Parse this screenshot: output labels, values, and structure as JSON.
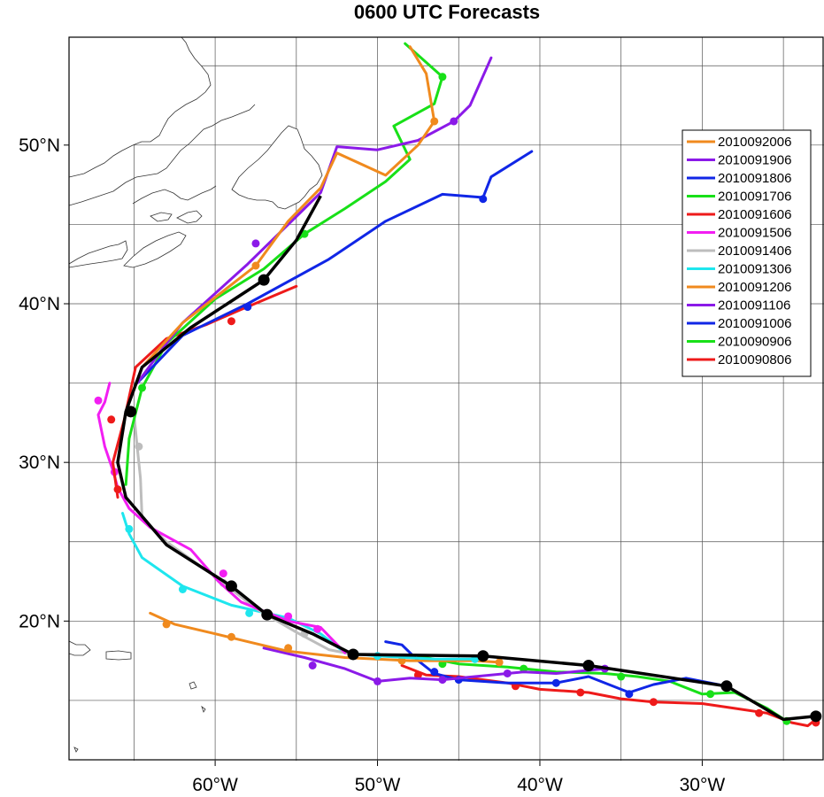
{
  "title": "0600 UTC Forecasts",
  "map": {
    "lon_range": [
      -69,
      -22.5
    ],
    "lat_range": [
      11.2,
      56.8
    ],
    "grid_lons": [
      -65,
      -60,
      -55,
      -50,
      -45,
      -40,
      -35,
      -30,
      -25
    ],
    "grid_lats": [
      15,
      20,
      25,
      30,
      35,
      40,
      45,
      50,
      55
    ],
    "lon_labels": [
      {
        "lon": -60,
        "text": "60°W"
      },
      {
        "lon": -50,
        "text": "50°W"
      },
      {
        "lon": -40,
        "text": "40°W"
      },
      {
        "lon": -30,
        "text": "30°W"
      }
    ],
    "lat_labels": [
      {
        "lat": 20,
        "text": "20°N"
      },
      {
        "lat": 30,
        "text": "30°N"
      },
      {
        "lat": 40,
        "text": "40°N"
      },
      {
        "lat": 50,
        "text": "50°N"
      }
    ]
  },
  "chart_data": {
    "type": "map-tracks",
    "legend": [
      {
        "label": "2010092006",
        "color": "#f08a1e"
      },
      {
        "label": "2010091906",
        "color": "#8b1ae8"
      },
      {
        "label": "2010091806",
        "color": "#1026e6"
      },
      {
        "label": "2010091706",
        "color": "#18e018"
      },
      {
        "label": "2010091606",
        "color": "#ee1a1a"
      },
      {
        "label": "2010091506",
        "color": "#f21ef2"
      },
      {
        "label": "2010091406",
        "color": "#bdbdbd"
      },
      {
        "label": "2010091306",
        "color": "#1ee6ee"
      },
      {
        "label": "2010091206",
        "color": "#f08a1e"
      },
      {
        "label": "2010091106",
        "color": "#8b1ae8"
      },
      {
        "label": "2010091006",
        "color": "#1026e6"
      },
      {
        "label": "2010090906",
        "color": "#18e018"
      },
      {
        "label": "2010090806",
        "color": "#ee1a1a"
      }
    ],
    "best_track": {
      "color": "#000000",
      "points": [
        [
          -23,
          14
        ],
        [
          -25,
          13.8
        ],
        [
          -28.5,
          15.9
        ],
        [
          -37,
          17.2
        ],
        [
          -43.5,
          17.8
        ],
        [
          -51.5,
          17.9
        ],
        [
          -54,
          19.2
        ],
        [
          -56.8,
          20.4
        ],
        [
          -59,
          22.2
        ],
        [
          -63,
          24.8
        ],
        [
          -65.5,
          27.8
        ],
        [
          -66,
          30
        ],
        [
          -65.5,
          33.2
        ],
        [
          -64.5,
          36
        ],
        [
          -61.5,
          38.5
        ],
        [
          -57,
          41.5
        ],
        [
          -55,
          44
        ],
        [
          -53.5,
          46.8
        ]
      ],
      "markers": [
        [
          -23,
          14
        ],
        [
          -28.5,
          15.9
        ],
        [
          -37,
          17.2
        ],
        [
          -43.5,
          17.8
        ],
        [
          -51.5,
          17.9
        ],
        [
          -56.8,
          20.4
        ],
        [
          -59,
          22.2
        ],
        [
          -65.2,
          33.2
        ],
        [
          -57,
          41.5
        ]
      ]
    },
    "tracks": [
      {
        "label": "2010092006",
        "color": "#f08a1e",
        "points": [
          [
            -64.5,
            36
          ],
          [
            -62,
            38.8
          ],
          [
            -57.5,
            42.4
          ],
          [
            -55.5,
            45.2
          ],
          [
            -53.5,
            47.3
          ],
          [
            -52.5,
            49.5
          ],
          [
            -49.5,
            48.1
          ],
          [
            -47.5,
            50
          ],
          [
            -46.5,
            51.5
          ],
          [
            -47,
            54.5
          ],
          [
            -48,
            56.2
          ]
        ],
        "markers": [
          [
            -57.5,
            42.4
          ],
          [
            -46.5,
            51.5
          ]
        ]
      },
      {
        "label": "2010091906",
        "color": "#8b1ae8",
        "points": [
          [
            -64.8,
            35
          ],
          [
            -63,
            37.5
          ],
          [
            -62,
            38.8
          ],
          [
            -58,
            42.5
          ],
          [
            -55,
            45.5
          ],
          [
            -53.5,
            47
          ],
          [
            -52.5,
            49.9
          ],
          [
            -50,
            49.7
          ],
          [
            -47.5,
            50.3
          ],
          [
            -45.3,
            51.5
          ],
          [
            -44.3,
            52.5
          ],
          [
            -43,
            55.5
          ]
        ],
        "markers": [
          [
            -57.5,
            43.8
          ],
          [
            -45.3,
            51.5
          ]
        ]
      },
      {
        "label": "2010091806",
        "color": "#1026e6",
        "points": [
          [
            -64.8,
            35
          ],
          [
            -62,
            38
          ],
          [
            -58,
            40
          ],
          [
            -53,
            42.8
          ],
          [
            -49.5,
            45.2
          ],
          [
            -46,
            46.9
          ],
          [
            -43.5,
            46.7
          ],
          [
            -43,
            48
          ],
          [
            -40.5,
            49.6
          ]
        ],
        "markers": [
          [
            -58,
            39.8
          ],
          [
            -43.5,
            46.6
          ]
        ]
      },
      {
        "label": "2010091706",
        "color": "#18e018",
        "points": [
          [
            -65.5,
            28.6
          ],
          [
            -65.3,
            31.5
          ],
          [
            -64.5,
            34.7
          ],
          [
            -63,
            37.5
          ],
          [
            -60,
            40.3
          ],
          [
            -57,
            42.2
          ],
          [
            -54.5,
            44.4
          ],
          [
            -52,
            46
          ],
          [
            -49.5,
            47.7
          ],
          [
            -48,
            49.1
          ],
          [
            -49,
            51.2
          ],
          [
            -46.5,
            52.6
          ],
          [
            -46,
            54.3
          ],
          [
            -48.3,
            56.4
          ]
        ],
        "markers": [
          [
            -64.5,
            34.7
          ],
          [
            -54.5,
            44.4
          ],
          [
            -46,
            54.3
          ]
        ]
      },
      {
        "label": "2010091606",
        "color": "#ee1a1a",
        "points": [
          [
            -66,
            27.8
          ],
          [
            -66.3,
            30
          ],
          [
            -65.6,
            32.7
          ],
          [
            -64.9,
            36
          ],
          [
            -63,
            37.8
          ],
          [
            -60.5,
            38.7
          ],
          [
            -58.5,
            39.6
          ],
          [
            -55,
            41.1
          ]
        ],
        "markers": [
          [
            -66,
            28.3
          ],
          [
            -66.4,
            32.7
          ],
          [
            -59,
            38.9
          ]
        ]
      },
      {
        "label": "2010091506",
        "color": "#f21ef2",
        "points": [
          [
            -66.5,
            35
          ],
          [
            -66.8,
            33.8
          ],
          [
            -67.2,
            33
          ],
          [
            -66.8,
            31
          ],
          [
            -66.3,
            29.5
          ],
          [
            -66,
            28.4
          ],
          [
            -65.3,
            27.1
          ],
          [
            -64,
            25.9
          ],
          [
            -61.5,
            24.5
          ],
          [
            -59.8,
            22.5
          ],
          [
            -58.4,
            21.2
          ],
          [
            -55.5,
            20
          ],
          [
            -53.5,
            19.6
          ],
          [
            -52,
            18
          ]
        ],
        "markers": [
          [
            -67.2,
            33.9
          ],
          [
            -66.2,
            29.4
          ],
          [
            -59.5,
            23
          ],
          [
            -55.5,
            20.3
          ],
          [
            -53.7,
            19.5
          ]
        ]
      },
      {
        "label": "2010091406",
        "color": "#bdbdbd",
        "points": [
          [
            -65,
            33
          ],
          [
            -64.8,
            31
          ],
          [
            -64.6,
            29
          ],
          [
            -64.5,
            26.5
          ],
          [
            -63,
            25
          ],
          [
            -60,
            22.8
          ],
          [
            -57.5,
            20.8
          ],
          [
            -55,
            19.3
          ],
          [
            -53,
            18.2
          ],
          [
            -51.5,
            17.9
          ]
        ],
        "markers": [
          [
            -64.7,
            31
          ],
          [
            -59.5,
            22.4
          ],
          [
            -54.5,
            19.2
          ]
        ]
      },
      {
        "label": "2010091306",
        "color": "#1ee6ee",
        "points": [
          [
            -65.7,
            26.8
          ],
          [
            -65.3,
            25.5
          ],
          [
            -64.5,
            24
          ],
          [
            -62,
            22.2
          ],
          [
            -59,
            21
          ],
          [
            -55.5,
            20.2
          ],
          [
            -53.5,
            19.2
          ],
          [
            -52,
            18
          ],
          [
            -50,
            17.8
          ],
          [
            -46.5,
            17.6
          ],
          [
            -44,
            17.6
          ]
        ],
        "markers": [
          [
            -65.3,
            25.8
          ],
          [
            -62,
            22
          ],
          [
            -57.9,
            20.5
          ],
          [
            -50,
            17.8
          ],
          [
            -44,
            17.6
          ]
        ]
      },
      {
        "label": "2010091206",
        "color": "#f08a1e",
        "points": [
          [
            -64,
            20.5
          ],
          [
            -62.5,
            19.8
          ],
          [
            -60,
            19.2
          ],
          [
            -58,
            18.7
          ],
          [
            -55.5,
            18.1
          ],
          [
            -52,
            17.7
          ],
          [
            -48,
            17.5
          ],
          [
            -44,
            17.5
          ],
          [
            -42.5,
            17.4
          ]
        ],
        "markers": [
          [
            -63,
            19.8
          ],
          [
            -59,
            19
          ],
          [
            -55.5,
            18.3
          ],
          [
            -48.5,
            17.5
          ],
          [
            -42.5,
            17.4
          ]
        ]
      },
      {
        "label": "2010091106",
        "color": "#8b1ae8",
        "points": [
          [
            -57,
            18.3
          ],
          [
            -54.5,
            17.7
          ],
          [
            -52,
            17
          ],
          [
            -50,
            16.2
          ],
          [
            -48,
            16.4
          ],
          [
            -46,
            16.3
          ],
          [
            -44,
            16.5
          ],
          [
            -41,
            16.8
          ],
          [
            -39,
            16.7
          ],
          [
            -36,
            17
          ]
        ],
        "markers": [
          [
            -54,
            17.2
          ],
          [
            -50,
            16.2
          ],
          [
            -46,
            16.3
          ],
          [
            -42,
            16.7
          ],
          [
            -36,
            17
          ]
        ]
      },
      {
        "label": "2010091006",
        "color": "#1026e6",
        "points": [
          [
            -49.5,
            18.7
          ],
          [
            -48.5,
            18.5
          ],
          [
            -47.5,
            17.5
          ],
          [
            -46.5,
            16.7
          ],
          [
            -45,
            16.3
          ],
          [
            -42,
            16.1
          ],
          [
            -39,
            16.1
          ],
          [
            -37,
            16.5
          ],
          [
            -34.5,
            15.5
          ],
          [
            -33,
            16
          ],
          [
            -31,
            16.4
          ],
          [
            -28.5,
            15.9
          ]
        ],
        "markers": [
          [
            -46.5,
            16.8
          ],
          [
            -45,
            16.3
          ],
          [
            -39,
            16.1
          ],
          [
            -34.5,
            15.4
          ]
        ]
      },
      {
        "label": "2010090906",
        "color": "#18e018",
        "points": [
          [
            -47.5,
            17.8
          ],
          [
            -45,
            17.3
          ],
          [
            -42,
            17.1
          ],
          [
            -39,
            16.8
          ],
          [
            -36,
            16.7
          ],
          [
            -34,
            16.5
          ],
          [
            -32,
            16.2
          ],
          [
            -30,
            15.4
          ],
          [
            -28,
            15.5
          ],
          [
            -26,
            14.5
          ],
          [
            -24.8,
            13.7
          ]
        ],
        "markers": [
          [
            -46,
            17.3
          ],
          [
            -41,
            17
          ],
          [
            -35,
            16.5
          ],
          [
            -29.5,
            15.4
          ],
          [
            -24.8,
            13.7
          ]
        ]
      },
      {
        "label": "2010090806",
        "color": "#ee1a1a",
        "points": [
          [
            -48.5,
            17.2
          ],
          [
            -47,
            16.6
          ],
          [
            -45,
            16.5
          ],
          [
            -42,
            16.1
          ],
          [
            -40,
            15.7
          ],
          [
            -37,
            15.5
          ],
          [
            -35,
            15.1
          ],
          [
            -33,
            14.9
          ],
          [
            -30,
            14.8
          ],
          [
            -28,
            14.5
          ],
          [
            -26,
            14.2
          ],
          [
            -24.5,
            13.6
          ],
          [
            -23.5,
            13.4
          ],
          [
            -23,
            13.8
          ]
        ],
        "markers": [
          [
            -47.5,
            16.6
          ],
          [
            -41.5,
            15.9
          ],
          [
            -37.5,
            15.5
          ],
          [
            -33,
            14.9
          ],
          [
            -26.5,
            14.2
          ],
          [
            -23,
            13.6
          ]
        ]
      }
    ]
  }
}
